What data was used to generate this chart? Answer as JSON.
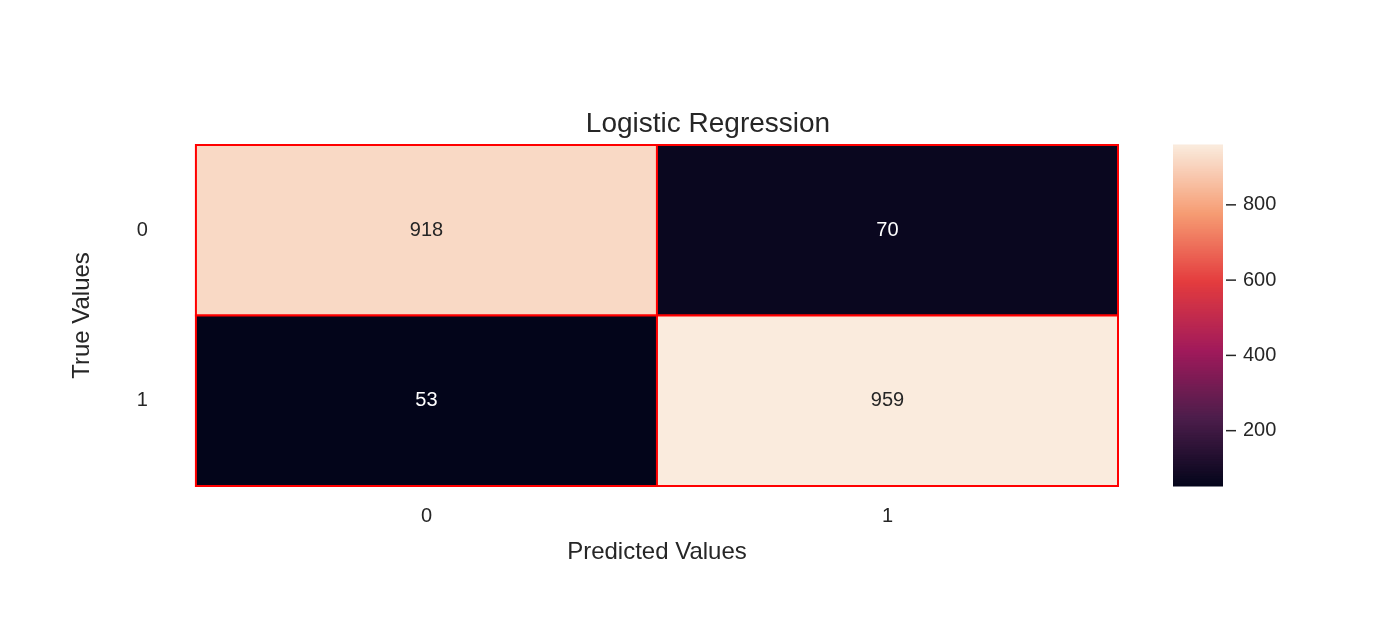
{
  "chart_data": {
    "type": "heatmap",
    "title": "Logistic Regression",
    "xlabel": "Predicted Values",
    "ylabel": "True Values",
    "categories": [
      "0",
      "1"
    ],
    "y_categories": [
      "0",
      "1"
    ],
    "cells": [
      [
        918,
        70
      ],
      [
        53,
        959
      ]
    ],
    "clim": [
      53,
      959
    ],
    "cticks": [
      200,
      400,
      600,
      800
    ],
    "data_labels": true
  }
}
